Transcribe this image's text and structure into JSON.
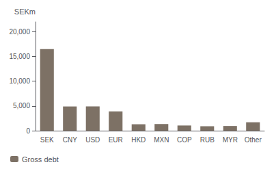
{
  "chart_data": {
    "type": "bar",
    "categories": [
      "SEK",
      "CNY",
      "USD",
      "EUR",
      "HKD",
      "MXN",
      "COP",
      "RUB",
      "MYR",
      "Other"
    ],
    "series": [
      {
        "name": "Gross debt",
        "color": "#7d7165",
        "values": [
          16500,
          4900,
          4900,
          3900,
          1300,
          1350,
          1050,
          900,
          950,
          1700
        ]
      }
    ],
    "ylabel": "SEKm",
    "ylim": [
      0,
      22000
    ],
    "yticks": [
      0,
      {
        "value": 5000,
        "label": "5,000"
      },
      {
        "value": 10000,
        "label": "10,000"
      },
      {
        "value": 15000,
        "label": "15,000"
      },
      {
        "value": 20000,
        "label": "20,000"
      }
    ],
    "grid": false,
    "legend": "lower left"
  }
}
